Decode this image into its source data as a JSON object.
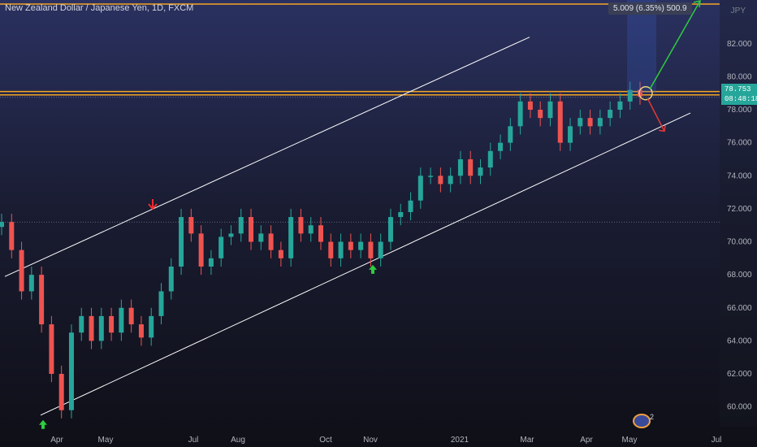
{
  "header": {
    "title": "New Zealand Dollar / Japanese Yen, 1D, FXCM",
    "currency": "JPY"
  },
  "price_tag": {
    "price": "78.753",
    "countdown": "08:48:18"
  },
  "measure": {
    "label": "5.009 (6.35%) 500.9"
  },
  "events": {
    "count": "2"
  },
  "chart_data": {
    "type": "candlestick",
    "title": "New Zealand Dollar / Japanese Yen, 1D, FXCM",
    "xlabel": "",
    "ylabel": "",
    "ylim": [
      58.8,
      84.5
    ],
    "y_ticks": [
      "82.000",
      "80.000",
      "78.000",
      "76.000",
      "74.000",
      "72.000",
      "70.000",
      "68.000",
      "66.000",
      "64.000",
      "62.000",
      "60.000"
    ],
    "x_ticks": [
      "Apr",
      "May",
      "Jul",
      "Aug",
      "Oct",
      "Nov",
      "2021",
      "Mar",
      "Apr",
      "May",
      "Jul"
    ],
    "series": [
      {
        "values": [
          71.2,
          69.5,
          67.0,
          68.0,
          65.0,
          62.0,
          59.8,
          64.5,
          65.5,
          64.0,
          65.5,
          64.5,
          66.0,
          65.0,
          64.2,
          65.5,
          67.0,
          68.5,
          71.5,
          70.5,
          68.5,
          69.0,
          70.3,
          70.5,
          71.5,
          70.0,
          70.5,
          69.5,
          69.0,
          71.5,
          70.5,
          71.0,
          70.0,
          69.0,
          70.0,
          69.5,
          70.0,
          69.0,
          70.0,
          71.5,
          71.8,
          72.5,
          74.0,
          74.0,
          73.5,
          74.0,
          75.0,
          74.0,
          74.5,
          75.5,
          76.0,
          77.0,
          78.5,
          78.0,
          77.5,
          78.5,
          76.0,
          77.0,
          77.5,
          77.0,
          77.5,
          78.0,
          78.5,
          79.2,
          78.8
        ]
      }
    ],
    "horizontal_levels": [
      78.9,
      79.1,
      84.4
    ],
    "dotted_levels": [
      71.2,
      78.75
    ],
    "channel": {
      "upper": {
        "start": [
          "Mar",
          67.9
        ],
        "end": [
          "Feb",
          82.4
        ]
      },
      "lower": {
        "start": [
          "Mar",
          59.5
        ],
        "end": [
          "Jun",
          77.8
        ]
      }
    },
    "projection": {
      "up_target": 84.6,
      "down_target": 76.7
    },
    "signals": [
      {
        "type": "buy-arrow",
        "at": "Mar",
        "price": 59.5
      },
      {
        "type": "sell-arrow",
        "at": "May",
        "price": 71.6
      },
      {
        "type": "buy-arrow",
        "at": "Nov",
        "price": 68.9
      }
    ],
    "colors": {
      "up": "#26a69a",
      "down": "#ef5350",
      "channel": "#ffffff",
      "level": "#f5a623",
      "projection_up": "#2ecc40",
      "projection_down": "#e53935"
    },
    "grid": false,
    "legend": "none"
  }
}
